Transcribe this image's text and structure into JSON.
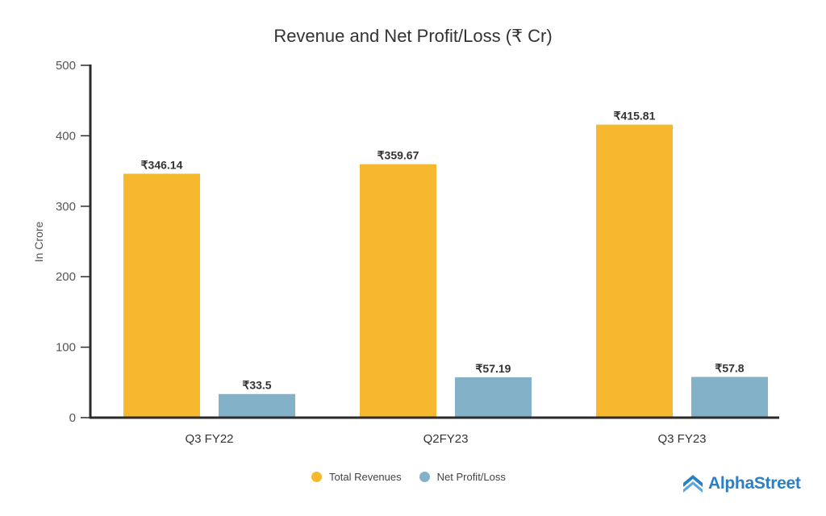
{
  "chart_data": {
    "type": "bar",
    "title": "Revenue and Net Profit/Loss (₹ Cr)",
    "xlabel": "",
    "ylabel": "In Crore",
    "ylim": [
      0,
      500
    ],
    "yticks": [
      "0",
      "100",
      "200",
      "300",
      "400",
      "500"
    ],
    "ytick_values": [
      0,
      100,
      200,
      300,
      400,
      500
    ],
    "grid": false,
    "categories": [
      "Q3 FY22",
      "Q2FY23",
      "Q3 FY23"
    ],
    "series": [
      {
        "name": "Total Revenues",
        "color": "#f5b82e",
        "values": [
          346.14,
          359.67,
          415.81
        ],
        "labels": [
          "₹346.14",
          "₹359.67",
          "₹415.81"
        ]
      },
      {
        "name": "Net Profit/Loss",
        "color": "#82b1c8",
        "values": [
          33.5,
          57.19,
          57.8
        ],
        "labels": [
          "₹33.5",
          "₹57.19",
          "₹57.8"
        ]
      }
    ],
    "legend_position": "bottom-center"
  },
  "brand": {
    "name": "AlphaStreet",
    "color": "#2c7fc3"
  }
}
